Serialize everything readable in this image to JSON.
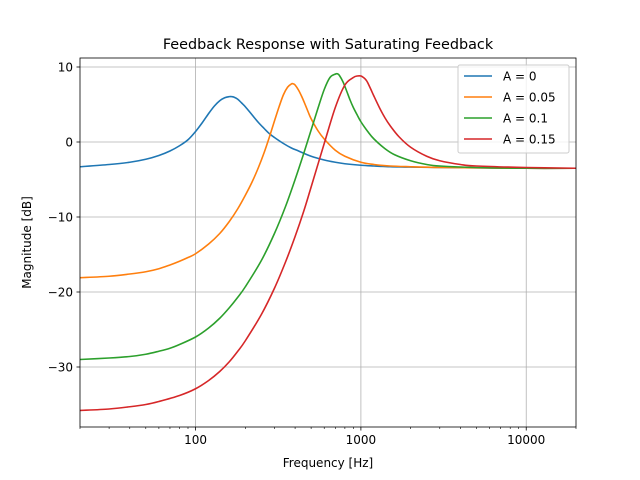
{
  "chart_data": {
    "type": "line",
    "title": "Feedback Response with Saturating Feedback",
    "xlabel": "Frequency [Hz]",
    "ylabel": "Magnitude [dB]",
    "xscale": "log",
    "xlim": [
      20,
      20000
    ],
    "ylim": [
      -38,
      11.2
    ],
    "grid": true,
    "x_ticks": [
      100,
      1000,
      10000
    ],
    "x_tick_labels": [
      "100",
      "1000",
      "10000"
    ],
    "y_ticks": [
      -30,
      -20,
      -10,
      0,
      10
    ],
    "y_tick_labels": [
      "−30",
      "−20",
      "−10",
      "0",
      "10"
    ],
    "legend_position": "top-right",
    "series": [
      {
        "name": "A = 0",
        "color": "#1f77b4",
        "x": [
          20,
          30,
          40,
          50,
          60,
          70,
          80,
          90,
          100,
          110,
          120,
          130,
          140,
          150,
          160,
          165,
          170,
          180,
          190,
          200,
          220,
          240,
          260,
          280,
          300,
          340,
          380,
          420,
          500,
          600,
          700,
          800,
          1000,
          1200,
          1500,
          2000,
          3000,
          5000,
          10000,
          20000
        ],
        "values": [
          -3.3,
          -3.0,
          -2.7,
          -2.3,
          -1.8,
          -1.2,
          -0.5,
          0.3,
          1.4,
          2.6,
          3.8,
          4.8,
          5.5,
          5.9,
          6.05,
          6.05,
          6.0,
          5.7,
          5.2,
          4.7,
          3.6,
          2.6,
          1.8,
          1.1,
          0.6,
          -0.2,
          -0.8,
          -1.2,
          -1.9,
          -2.4,
          -2.7,
          -2.9,
          -3.1,
          -3.2,
          -3.3,
          -3.35,
          -3.4,
          -3.45,
          -3.5,
          -3.5
        ]
      },
      {
        "name": "A = 0.05",
        "color": "#ff7f0e",
        "x": [
          20,
          30,
          40,
          50,
          60,
          70,
          80,
          90,
          100,
          120,
          140,
          160,
          180,
          200,
          220,
          240,
          260,
          280,
          300,
          320,
          340,
          360,
          380,
          390,
          400,
          420,
          440,
          460,
          480,
          500,
          550,
          600,
          700,
          800,
          1000,
          1200,
          1500,
          2000,
          3000,
          5000,
          10000,
          20000
        ],
        "values": [
          -18.1,
          -17.9,
          -17.6,
          -17.3,
          -16.9,
          -16.4,
          -15.9,
          -15.4,
          -14.9,
          -13.6,
          -12.2,
          -10.6,
          -8.9,
          -7.1,
          -5.3,
          -3.4,
          -1.4,
          0.7,
          2.8,
          4.7,
          6.3,
          7.3,
          7.75,
          7.75,
          7.6,
          6.9,
          6.0,
          5.0,
          4.0,
          3.1,
          1.5,
          0.4,
          -1.1,
          -1.9,
          -2.7,
          -3.0,
          -3.2,
          -3.3,
          -3.4,
          -3.45,
          -3.5,
          -3.5
        ]
      },
      {
        "name": "A = 0.1",
        "color": "#2ca02c",
        "x": [
          20,
          30,
          40,
          50,
          60,
          70,
          80,
          100,
          120,
          140,
          160,
          180,
          200,
          250,
          300,
          350,
          400,
          450,
          500,
          550,
          600,
          650,
          700,
          720,
          740,
          780,
          820,
          860,
          900,
          950,
          1000,
          1100,
          1200,
          1400,
          1600,
          2000,
          2500,
          3000,
          5000,
          10000,
          20000
        ],
        "values": [
          -29.0,
          -28.8,
          -28.6,
          -28.3,
          -27.9,
          -27.5,
          -27.0,
          -26.0,
          -24.8,
          -23.5,
          -22.1,
          -20.7,
          -19.3,
          -15.8,
          -12.2,
          -8.6,
          -5.0,
          -1.6,
          1.6,
          4.5,
          7.0,
          8.6,
          9.05,
          9.1,
          8.9,
          8.0,
          6.8,
          5.6,
          4.6,
          3.6,
          2.7,
          1.4,
          0.4,
          -0.9,
          -1.7,
          -2.5,
          -3.0,
          -3.2,
          -3.4,
          -3.5,
          -3.5
        ]
      },
      {
        "name": "A = 0.15",
        "color": "#d62728",
        "x": [
          20,
          30,
          40,
          50,
          60,
          80,
          100,
          120,
          140,
          160,
          180,
          200,
          250,
          300,
          350,
          400,
          450,
          500,
          600,
          700,
          800,
          900,
          950,
          1000,
          1050,
          1080,
          1100,
          1150,
          1200,
          1300,
          1400,
          1500,
          1700,
          2000,
          2500,
          3000,
          4000,
          5000,
          10000,
          20000
        ],
        "values": [
          -35.8,
          -35.6,
          -35.3,
          -35.0,
          -34.6,
          -33.8,
          -32.9,
          -31.8,
          -30.6,
          -29.3,
          -27.9,
          -26.5,
          -23.0,
          -19.5,
          -16.0,
          -12.6,
          -9.3,
          -6.0,
          -0.2,
          4.6,
          7.6,
          8.6,
          8.8,
          8.8,
          8.5,
          8.2,
          7.9,
          7.0,
          6.1,
          4.5,
          3.2,
          2.2,
          0.7,
          -0.7,
          -1.9,
          -2.5,
          -3.0,
          -3.2,
          -3.4,
          -3.5
        ]
      }
    ]
  }
}
